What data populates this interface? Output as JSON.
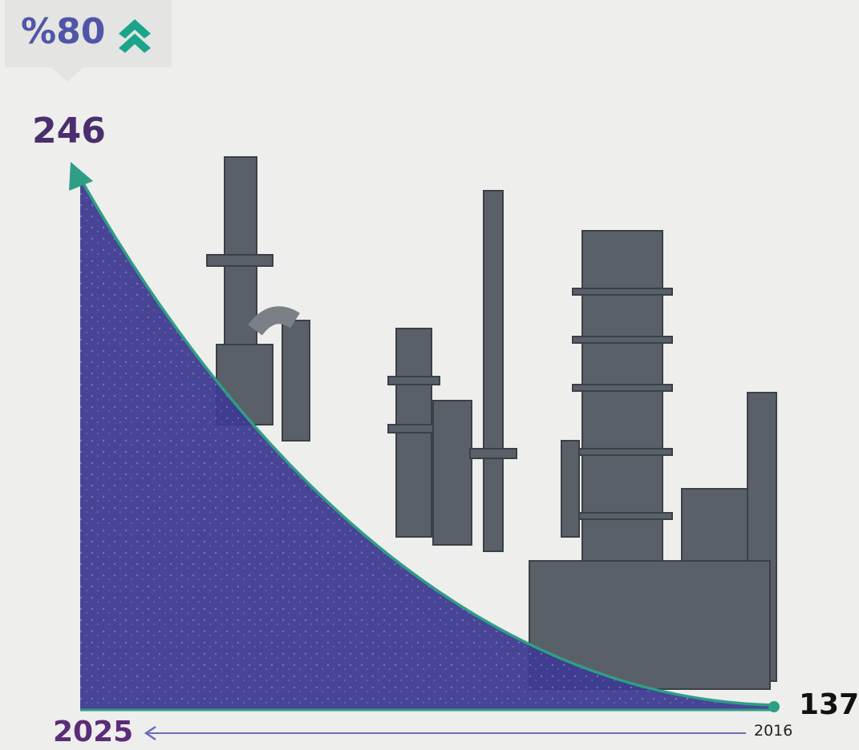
{
  "change_badge": {
    "text": "%80",
    "icon": "double-chevron-up-icon",
    "color": "#5056a7",
    "icon_color": "#1aa58a"
  },
  "chart_data": {
    "type": "area",
    "x": [
      "2025",
      "2016"
    ],
    "y": [
      246,
      137
    ],
    "start_label": "246",
    "end_label": "137",
    "x_start_label": "2025",
    "x_end_label": "2016",
    "grid": false,
    "legend": "none",
    "fill_color": "#3e3a92",
    "line_color": "#2e9e86",
    "arrow_color": "#6e6bb8"
  }
}
